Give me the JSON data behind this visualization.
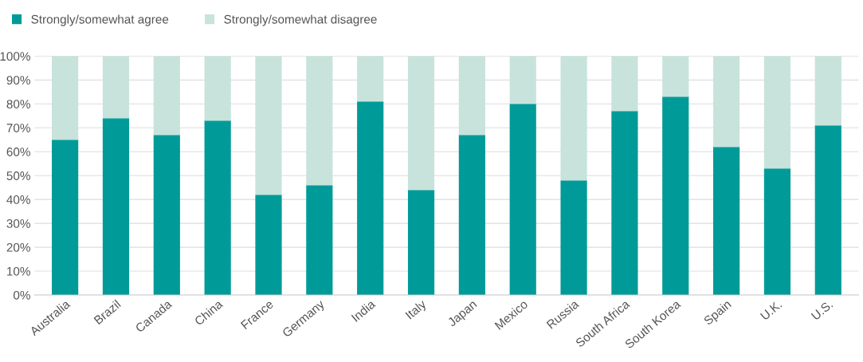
{
  "chart_data": {
    "type": "bar",
    "stacked": true,
    "categories": [
      "Australia",
      "Brazil",
      "Canada",
      "China",
      "France",
      "Germany",
      "India",
      "Italy",
      "Japan",
      "Mexico",
      "Russia",
      "South Africa",
      "South Korea",
      "Spain",
      "U.K.",
      "U.S."
    ],
    "series": [
      {
        "name": "Strongly/somewhat agree",
        "color": "#009b98",
        "values": [
          65,
          74,
          67,
          73,
          42,
          46,
          81,
          44,
          67,
          80,
          48,
          77,
          83,
          62,
          53,
          71
        ]
      },
      {
        "name": "Strongly/somewhat disagree",
        "color": "#c8e3db",
        "values": [
          35,
          26,
          33,
          27,
          58,
          54,
          19,
          56,
          33,
          20,
          52,
          23,
          17,
          38,
          47,
          29
        ]
      }
    ],
    "ylim": [
      0,
      100
    ],
    "yticks": [
      {
        "value": 0,
        "label": "0%"
      },
      {
        "value": 10,
        "label": "10%"
      },
      {
        "value": 20,
        "label": "20%"
      },
      {
        "value": 30,
        "label": "30%"
      },
      {
        "value": 40,
        "label": "40%"
      },
      {
        "value": 50,
        "label": "50%"
      },
      {
        "value": 60,
        "label": "60%"
      },
      {
        "value": 70,
        "label": "70%"
      },
      {
        "value": 80,
        "label": "80%"
      },
      {
        "value": 90,
        "label": "90%"
      },
      {
        "value": 100,
        "label": "100%"
      }
    ],
    "grid": "y",
    "legend": "top left"
  }
}
